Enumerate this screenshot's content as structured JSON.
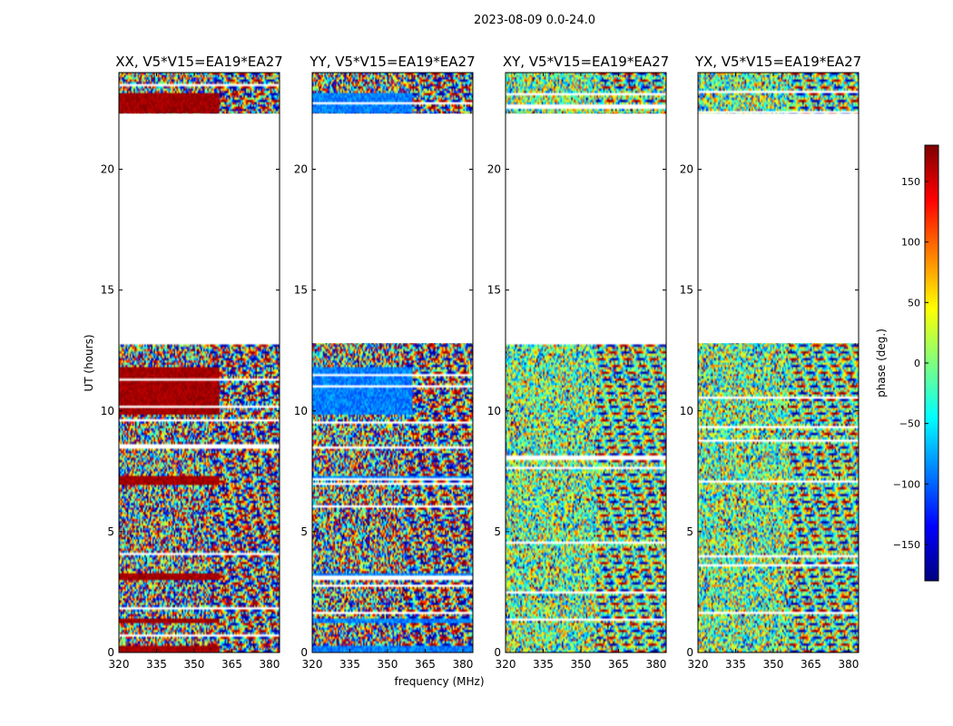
{
  "figure_title": "2023-08-09 0.0-24.0",
  "ylabel": "UT (hours)",
  "xlabel": "frequency (MHz)",
  "colorbar": {
    "label": "phase (deg.)",
    "range": [
      -180,
      180
    ],
    "ticks": [
      150,
      100,
      50,
      0,
      -50,
      -100,
      -150
    ],
    "tick_labels": [
      "150",
      "100",
      "50",
      "0",
      "−50",
      "−100",
      "−150"
    ],
    "colors": [
      "#00007f",
      "#0000ff",
      "#007fff",
      "#00ffff",
      "#7fff7f",
      "#ffff00",
      "#ff7f00",
      "#ff0000",
      "#7f0000"
    ]
  },
  "chart_data": {
    "type": "heatmap",
    "colormap": "jet",
    "x_range_mhz": [
      320,
      384
    ],
    "y_range_hours": [
      0,
      24
    ],
    "x_ticks": [
      320,
      335,
      350,
      365,
      380
    ],
    "y_ticks": [
      0,
      5,
      10,
      15,
      20
    ],
    "data_gap_hours": [
      22.3,
      12.8
    ],
    "panels": [
      {
        "title": "XX, V5*V15=EA19*EA27",
        "mode": "XX",
        "coherent_phase_deg": 180,
        "coherent_bands_hours": [
          [
            22.3,
            23.2,
            360
          ],
          [
            9.8,
            11.8,
            360
          ],
          [
            6.9,
            7.3,
            360
          ],
          [
            3.0,
            3.3,
            360
          ],
          [
            1.2,
            1.4,
            360
          ],
          [
            0.0,
            0.3,
            360
          ]
        ]
      },
      {
        "title": "YY, V5*V15=EA19*EA27",
        "mode": "YY",
        "coherent_phase_deg": -90,
        "coherent_bands_hours": [
          [
            22.3,
            23.2,
            360
          ],
          [
            9.8,
            11.8,
            360
          ],
          [
            7.1,
            7.3,
            384
          ],
          [
            3.0,
            3.3,
            384
          ],
          [
            1.2,
            1.4,
            384
          ],
          [
            0.0,
            0.3,
            384
          ]
        ]
      },
      {
        "title": "XY, V5*V15=EA19*EA27",
        "mode": "XY",
        "coherent_phase_deg": 0,
        "coherent_bands_hours": []
      },
      {
        "title": "YX, V5*V15=EA19*EA27",
        "mode": "YX",
        "coherent_phase_deg": 0,
        "coherent_bands_hours": []
      }
    ]
  }
}
